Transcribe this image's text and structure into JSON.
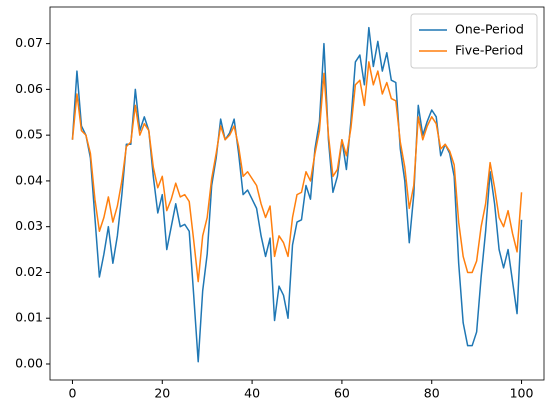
{
  "chart_data": {
    "type": "line",
    "x": [
      0,
      1,
      2,
      3,
      4,
      5,
      6,
      7,
      8,
      9,
      10,
      11,
      12,
      13,
      14,
      15,
      16,
      17,
      18,
      19,
      20,
      21,
      22,
      23,
      24,
      25,
      26,
      27,
      28,
      29,
      30,
      31,
      32,
      33,
      34,
      35,
      36,
      37,
      38,
      39,
      40,
      41,
      42,
      43,
      44,
      45,
      46,
      47,
      48,
      49,
      50,
      51,
      52,
      53,
      54,
      55,
      56,
      57,
      58,
      59,
      60,
      61,
      62,
      63,
      64,
      65,
      66,
      67,
      68,
      69,
      70,
      71,
      72,
      73,
      74,
      75,
      76,
      77,
      78,
      79,
      80,
      81,
      82,
      83,
      84,
      85,
      86,
      87,
      88,
      89,
      90,
      91,
      92,
      93,
      94,
      95,
      96,
      97,
      98,
      99,
      100
    ],
    "series": [
      {
        "name": "One-Period",
        "color": "#1f77b4",
        "values": [
          0.049,
          0.064,
          0.052,
          0.05,
          0.045,
          0.032,
          0.019,
          0.024,
          0.03,
          0.022,
          0.028,
          0.037,
          0.048,
          0.048,
          0.06,
          0.051,
          0.054,
          0.051,
          0.041,
          0.033,
          0.037,
          0.025,
          0.03,
          0.035,
          0.03,
          0.0305,
          0.029,
          0.015,
          0.0005,
          0.016,
          0.024,
          0.039,
          0.045,
          0.0535,
          0.049,
          0.0505,
          0.0535,
          0.046,
          0.037,
          0.038,
          0.036,
          0.034,
          0.028,
          0.0235,
          0.0275,
          0.0095,
          0.017,
          0.015,
          0.01,
          0.026,
          0.031,
          0.0315,
          0.039,
          0.036,
          0.047,
          0.053,
          0.07,
          0.049,
          0.0375,
          0.041,
          0.049,
          0.0425,
          0.053,
          0.066,
          0.0675,
          0.061,
          0.0735,
          0.065,
          0.0705,
          0.064,
          0.068,
          0.062,
          0.0615,
          0.047,
          0.04,
          0.0265,
          0.037,
          0.0565,
          0.05,
          0.053,
          0.0555,
          0.054,
          0.0455,
          0.048,
          0.046,
          0.041,
          0.022,
          0.009,
          0.004,
          0.004,
          0.007,
          0.019,
          0.029,
          0.042,
          0.035,
          0.025,
          0.021,
          0.025,
          0.018,
          0.011,
          0.0315
        ]
      },
      {
        "name": "Five-Period",
        "color": "#ff7f0e",
        "values": [
          0.049,
          0.059,
          0.051,
          0.05,
          0.046,
          0.036,
          0.029,
          0.032,
          0.0365,
          0.031,
          0.0345,
          0.04,
          0.0475,
          0.0485,
          0.0565,
          0.05,
          0.0525,
          0.051,
          0.043,
          0.0385,
          0.041,
          0.0335,
          0.036,
          0.0395,
          0.0365,
          0.037,
          0.0355,
          0.027,
          0.018,
          0.028,
          0.032,
          0.0405,
          0.046,
          0.052,
          0.049,
          0.05,
          0.052,
          0.0475,
          0.041,
          0.042,
          0.0405,
          0.039,
          0.035,
          0.032,
          0.0345,
          0.0235,
          0.028,
          0.0265,
          0.0235,
          0.032,
          0.037,
          0.0375,
          0.042,
          0.04,
          0.046,
          0.051,
          0.0635,
          0.05,
          0.041,
          0.0425,
          0.049,
          0.0455,
          0.0515,
          0.061,
          0.062,
          0.0565,
          0.066,
          0.061,
          0.064,
          0.059,
          0.0615,
          0.058,
          0.0575,
          0.0485,
          0.043,
          0.034,
          0.039,
          0.054,
          0.049,
          0.052,
          0.054,
          0.0525,
          0.047,
          0.048,
          0.0465,
          0.0435,
          0.031,
          0.0235,
          0.02,
          0.02,
          0.0225,
          0.03,
          0.035,
          0.044,
          0.0385,
          0.032,
          0.03,
          0.0335,
          0.0285,
          0.0245,
          0.0375
        ]
      }
    ],
    "xlim": [
      -5,
      105
    ],
    "xticks": [
      0,
      20,
      40,
      60,
      80,
      100
    ],
    "ylim": [
      -0.0035,
      0.078
    ],
    "yticks": [
      {
        "value": 0,
        "label": "0.00"
      },
      {
        "value": 0.01,
        "label": "0.01"
      },
      {
        "value": 0.02,
        "label": "0.02"
      },
      {
        "value": 0.03,
        "label": "0.03"
      },
      {
        "value": 0.04,
        "label": "0.04"
      },
      {
        "value": 0.05,
        "label": "0.05"
      },
      {
        "value": 0.06,
        "label": "0.06"
      },
      {
        "value": 0.07,
        "label": "0.07"
      }
    ],
    "legend": "upper right"
  }
}
